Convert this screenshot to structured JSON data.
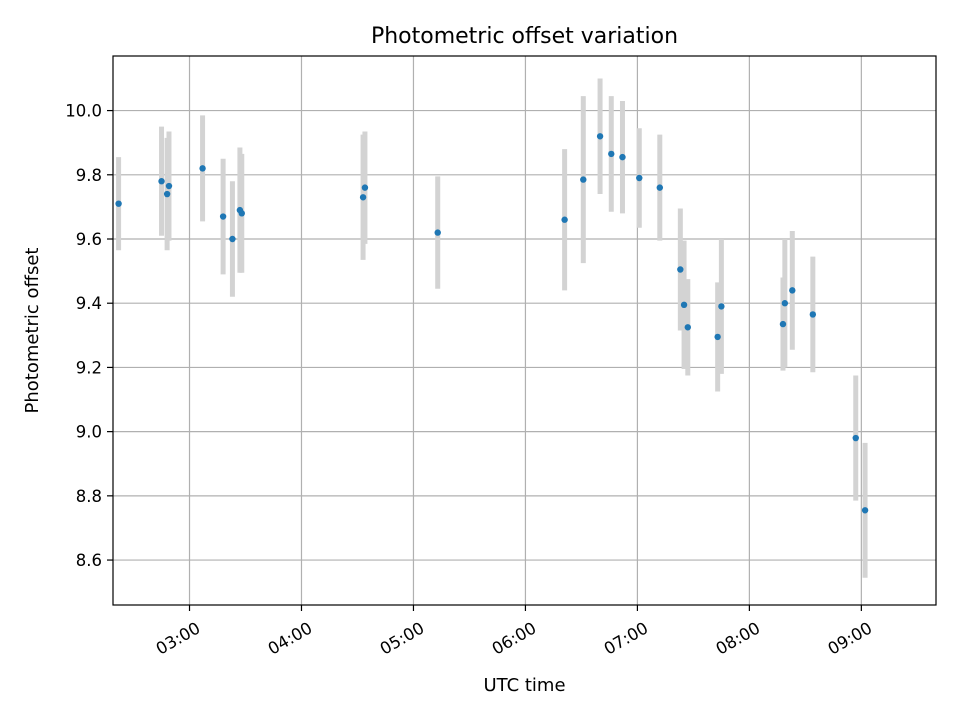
{
  "chart_data": {
    "type": "scatter",
    "title": "Photometric offset variation",
    "xlabel": "UTC time",
    "ylabel": "Photometric offset",
    "x_tick_labels": [
      "03:00",
      "04:00",
      "05:00",
      "06:00",
      "07:00",
      "08:00",
      "09:00"
    ],
    "y_tick_labels": [
      "8.6",
      "8.8",
      "9.0",
      "9.2",
      "9.4",
      "9.6",
      "9.8",
      "10.0"
    ],
    "y_ticks": [
      8.6,
      8.8,
      9.0,
      9.2,
      9.4,
      9.6,
      9.8,
      10.0
    ],
    "x_ticks": [
      "03:00",
      "04:00",
      "05:00",
      "06:00",
      "07:00",
      "08:00",
      "09:00"
    ],
    "xlim": [
      "02:19",
      "09:40"
    ],
    "ylim": [
      8.46,
      10.17
    ],
    "grid": true,
    "error_bars": true,
    "colors": {
      "points": "#1f77b4",
      "error_bars": "#d3d3d3",
      "grid": "#b0b0b0"
    },
    "series": [
      {
        "points": [
          {
            "x": "02:22",
            "y": 9.71,
            "err": 0.145
          },
          {
            "x": "02:45",
            "y": 9.78,
            "err": 0.17
          },
          {
            "x": "02:48",
            "y": 9.74,
            "err": 0.175
          },
          {
            "x": "02:49",
            "y": 9.765,
            "err": 0.17
          },
          {
            "x": "03:07",
            "y": 9.82,
            "err": 0.165
          },
          {
            "x": "03:18",
            "y": 9.67,
            "err": 0.18
          },
          {
            "x": "03:23",
            "y": 9.6,
            "err": 0.18
          },
          {
            "x": "03:27",
            "y": 9.69,
            "err": 0.195
          },
          {
            "x": "03:28",
            "y": 9.68,
            "err": 0.185
          },
          {
            "x": "04:33",
            "y": 9.73,
            "err": 0.195
          },
          {
            "x": "04:34",
            "y": 9.76,
            "err": 0.175
          },
          {
            "x": "05:13",
            "y": 9.62,
            "err": 0.175
          },
          {
            "x": "06:21",
            "y": 9.66,
            "err": 0.22
          },
          {
            "x": "06:31",
            "y": 9.785,
            "err": 0.26
          },
          {
            "x": "06:40",
            "y": 9.92,
            "err": 0.18
          },
          {
            "x": "06:46",
            "y": 9.865,
            "err": 0.18
          },
          {
            "x": "06:52",
            "y": 9.855,
            "err": 0.175
          },
          {
            "x": "07:01",
            "y": 9.79,
            "err": 0.155
          },
          {
            "x": "07:12",
            "y": 9.76,
            "err": 0.165
          },
          {
            "x": "07:23",
            "y": 9.505,
            "err": 0.19
          },
          {
            "x": "07:25",
            "y": 9.395,
            "err": 0.2
          },
          {
            "x": "07:27",
            "y": 9.325,
            "err": 0.15
          },
          {
            "x": "07:43",
            "y": 9.295,
            "err": 0.17
          },
          {
            "x": "07:45",
            "y": 9.39,
            "err": 0.21
          },
          {
            "x": "08:18",
            "y": 9.335,
            "err": 0.145
          },
          {
            "x": "08:19",
            "y": 9.4,
            "err": 0.2
          },
          {
            "x": "08:23",
            "y": 9.44,
            "err": 0.185
          },
          {
            "x": "08:34",
            "y": 9.365,
            "err": 0.18
          },
          {
            "x": "08:57",
            "y": 8.98,
            "err": 0.195
          },
          {
            "x": "09:02",
            "y": 8.755,
            "err": 0.21
          }
        ]
      }
    ]
  }
}
